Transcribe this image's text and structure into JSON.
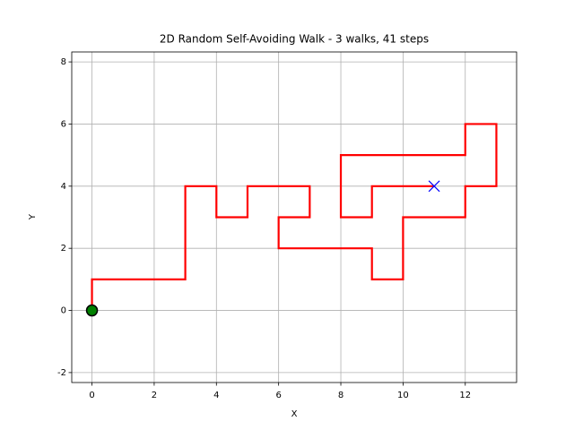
{
  "chart_data": {
    "type": "line",
    "title": "2D Random Self-Avoiding Walk - 3 walks, 41 steps",
    "x_label": "X",
    "y_label": "Y",
    "xlim": [
      -0.65,
      13.65
    ],
    "ylim": [
      -2.32,
      8.32
    ],
    "xticks": [
      0,
      2,
      4,
      6,
      8,
      10,
      12
    ],
    "yticks": [
      -2,
      0,
      2,
      4,
      6,
      8
    ],
    "grid": true,
    "series": [
      {
        "color": "#ff0000",
        "marker": "none",
        "x": [
          0,
          0,
          1,
          2,
          3,
          3,
          3,
          3,
          4,
          4,
          5,
          5,
          6,
          7,
          7,
          6,
          6,
          7,
          8,
          9,
          9,
          10,
          10,
          10,
          11,
          12,
          12,
          13,
          13,
          13,
          12,
          12,
          11,
          10,
          9,
          8,
          8,
          8,
          9,
          9,
          10,
          11
        ],
        "values": [
          0,
          1,
          1,
          1,
          1,
          2,
          3,
          4,
          4,
          3,
          3,
          4,
          4,
          4,
          3,
          3,
          2,
          2,
          2,
          2,
          1,
          1,
          2,
          3,
          3,
          3,
          4,
          4,
          5,
          6,
          6,
          5,
          5,
          5,
          5,
          5,
          4,
          3,
          3,
          4,
          4,
          4
        ]
      },
      {
        "color": "#008000",
        "marker": "circle",
        "x": [
          0
        ],
        "values": [
          0
        ]
      },
      {
        "color": "#0000ff",
        "marker": "x",
        "x": [
          11
        ],
        "values": [
          4
        ]
      }
    ]
  }
}
